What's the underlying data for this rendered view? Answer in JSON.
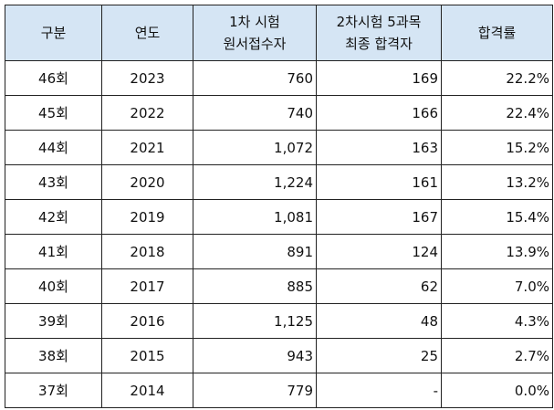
{
  "table": {
    "headers": [
      {
        "lines": [
          "구분"
        ]
      },
      {
        "lines": [
          "연도"
        ]
      },
      {
        "lines": [
          "1차 시험",
          "원서접수자"
        ]
      },
      {
        "lines": [
          "2차시험 5과목",
          "최종 합격자"
        ]
      },
      {
        "lines": [
          "합격률"
        ]
      }
    ],
    "rows": [
      {
        "round": "46회",
        "year": "2023",
        "applicants": "760",
        "passers": "169",
        "rate": "22.2%"
      },
      {
        "round": "45회",
        "year": "2022",
        "applicants": "740",
        "passers": "166",
        "rate": "22.4%"
      },
      {
        "round": "44회",
        "year": "2021",
        "applicants": "1,072",
        "passers": "163",
        "rate": "15.2%"
      },
      {
        "round": "43회",
        "year": "2020",
        "applicants": "1,224",
        "passers": "161",
        "rate": "13.2%"
      },
      {
        "round": "42회",
        "year": "2019",
        "applicants": "1,081",
        "passers": "167",
        "rate": "15.4%"
      },
      {
        "round": "41회",
        "year": "2018",
        "applicants": "891",
        "passers": "124",
        "rate": "13.9%"
      },
      {
        "round": "40회",
        "year": "2017",
        "applicants": "885",
        "passers": "62",
        "rate": "7.0%"
      },
      {
        "round": "39회",
        "year": "2016",
        "applicants": "1,125",
        "passers": "48",
        "rate": "4.3%"
      },
      {
        "round": "38회",
        "year": "2015",
        "applicants": "943",
        "passers": "25",
        "rate": "2.7%"
      },
      {
        "round": "37회",
        "year": "2014",
        "applicants": "779",
        "passers": "-",
        "rate": "0.0%"
      }
    ]
  },
  "colors": {
    "header_background": "#d5e5f4",
    "border": "#222222"
  }
}
